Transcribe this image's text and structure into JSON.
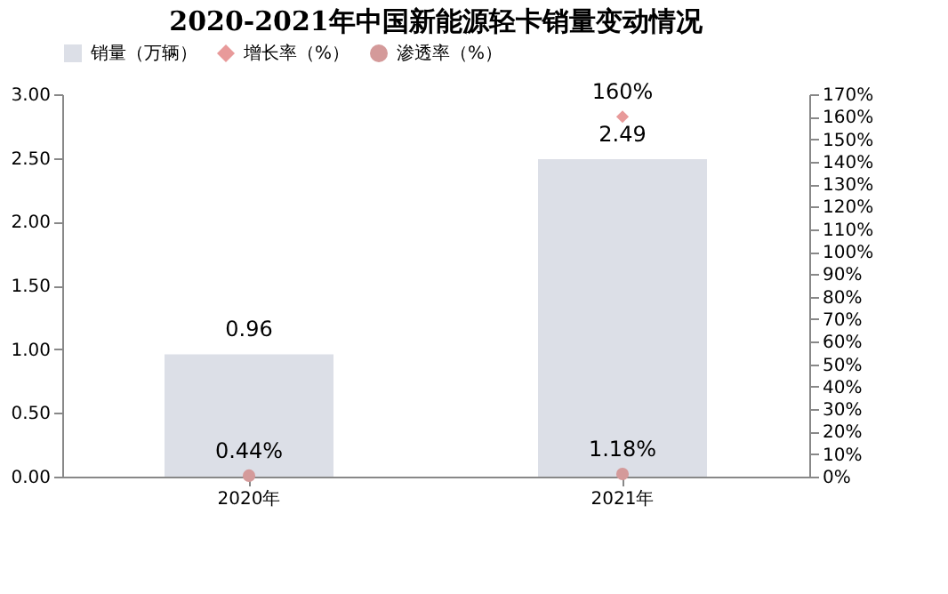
{
  "chart_data": {
    "type": "bar",
    "title": "2020-2021年中国新能源轻卡销量变动情况",
    "categories": [
      "2020年",
      "2021年"
    ],
    "series": [
      {
        "name": "销量（万辆）",
        "color": "#dcdfe7",
        "values": [
          0.96,
          2.49
        ],
        "value_labels": [
          "0.96",
          "2.49"
        ]
      },
      {
        "name": "增长率（%）",
        "color": "#e89a9a",
        "type": "scatter",
        "axis": "y2",
        "marker": "diamond",
        "values": [
          null,
          160
        ],
        "value_labels": [
          null,
          "160%"
        ]
      },
      {
        "name": "渗透率（%）",
        "color": "#d49a9a",
        "type": "scatter",
        "axis": "y2",
        "marker": "circle",
        "values": [
          0.44,
          1.18
        ],
        "value_labels": [
          "0.44%",
          "1.18%"
        ]
      }
    ],
    "ylim": [
      0,
      3
    ],
    "yticks": [
      {
        "value": 0,
        "label": "0.00"
      },
      {
        "value": 0.5,
        "label": "0.50"
      },
      {
        "value": 1,
        "label": "1.00"
      },
      {
        "value": 1.5,
        "label": "1.50"
      },
      {
        "value": 2,
        "label": "2.00"
      },
      {
        "value": 2.5,
        "label": "2.50"
      },
      {
        "value": 3,
        "label": "3.00"
      }
    ],
    "y2lim": [
      0,
      170
    ],
    "y2ticks": [
      {
        "value": 0,
        "label": "0%"
      },
      {
        "value": 10,
        "label": "10%"
      },
      {
        "value": 20,
        "label": "20%"
      },
      {
        "value": 30,
        "label": "30%"
      },
      {
        "value": 40,
        "label": "40%"
      },
      {
        "value": 50,
        "label": "50%"
      },
      {
        "value": 60,
        "label": "60%"
      },
      {
        "value": 70,
        "label": "70%"
      },
      {
        "value": 80,
        "label": "80%"
      },
      {
        "value": 90,
        "label": "90%"
      },
      {
        "value": 100,
        "label": "100%"
      },
      {
        "value": 110,
        "label": "110%"
      },
      {
        "value": 120,
        "label": "120%"
      },
      {
        "value": 130,
        "label": "130%"
      },
      {
        "value": 140,
        "label": "140%"
      },
      {
        "value": 150,
        "label": "150%"
      },
      {
        "value": 160,
        "label": "160%"
      },
      {
        "value": 170,
        "label": "170%"
      }
    ],
    "legend": "top",
    "grid": false
  }
}
